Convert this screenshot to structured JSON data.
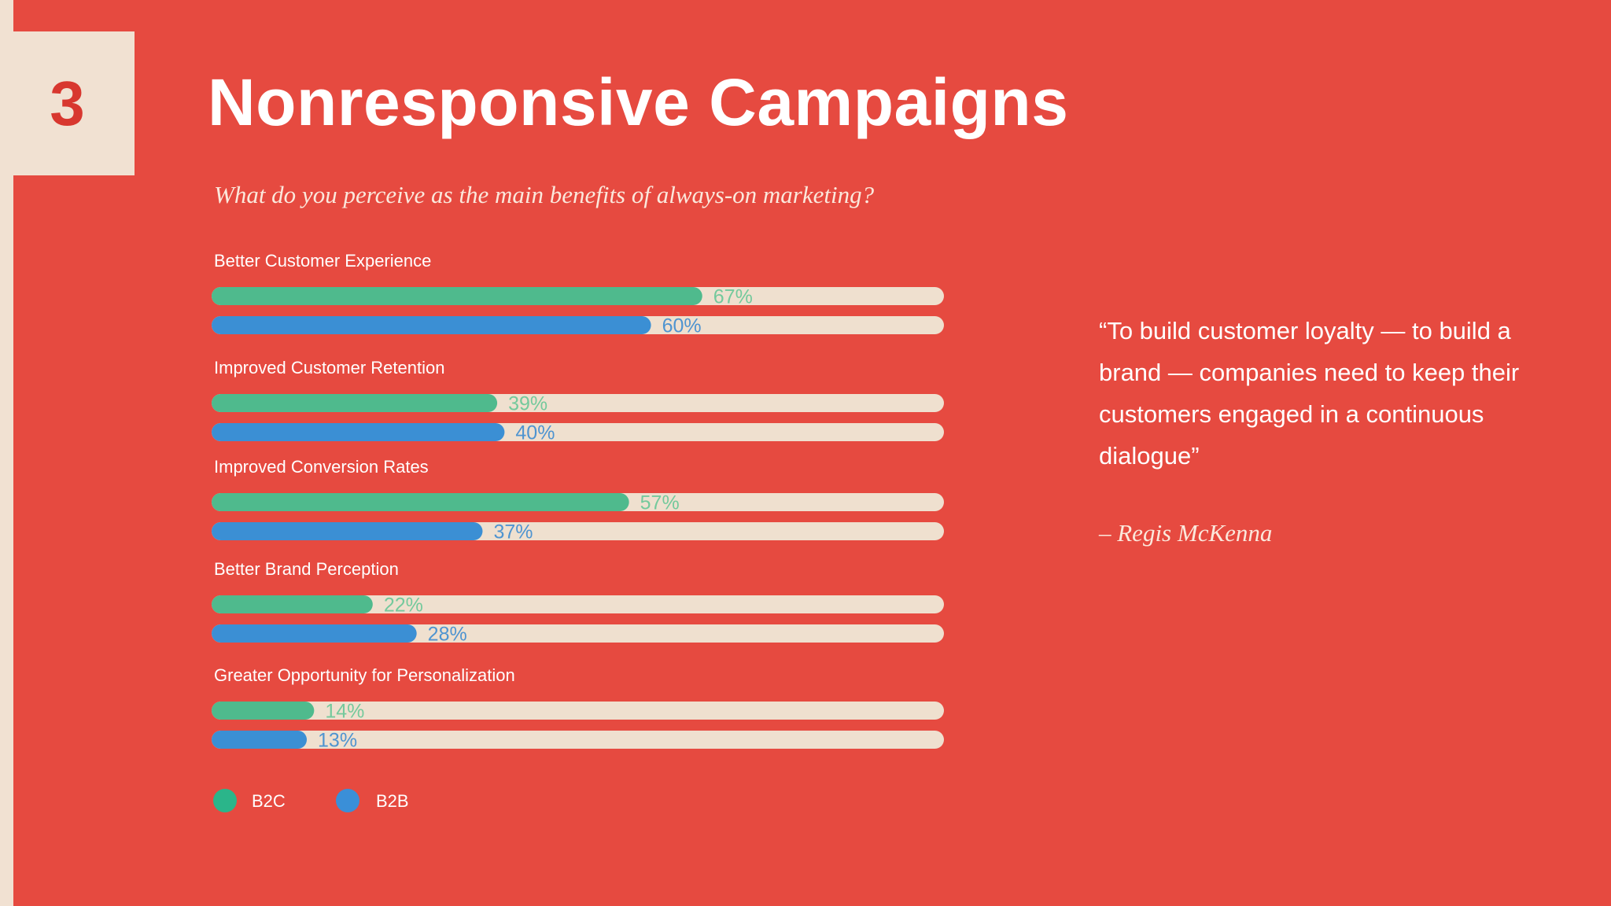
{
  "slide": {
    "number": "3",
    "title": "Nonresponsive Campaigns",
    "question": "What do you perceive as the main benefits of always-on marketing?"
  },
  "quote": {
    "text": "“To build customer loyalty — to build a brand — companies need to keep their customers engaged in a continuous dialogue”",
    "author": "– Regis McKenna"
  },
  "colors": {
    "background": "#e64a40",
    "panel": "#f1e1d2",
    "track": "#efe0cf",
    "b2c": "#4fba8d",
    "b2b": "#3b8fd4",
    "b2c_label": "#74c99c",
    "b2b_label": "#4f94d0",
    "legend_b2c": "#2bb58a",
    "legend_b2b": "#3a8fd8"
  },
  "chart_data": {
    "type": "bar",
    "orientation": "horizontal",
    "categories": [
      "Better Customer Experience",
      "Improved Customer Retention",
      "Improved Conversion Rates",
      "Better Brand Perception",
      "Greater Opportunity for Personalization"
    ],
    "series": [
      {
        "name": "B2C",
        "values": [
          67,
          39,
          57,
          22,
          14
        ]
      },
      {
        "name": "B2B",
        "values": [
          60,
          40,
          37,
          28,
          13
        ]
      }
    ],
    "value_suffix": "%",
    "xlim": [
      0,
      100
    ],
    "legend_position": "bottom-left",
    "grid": false
  }
}
